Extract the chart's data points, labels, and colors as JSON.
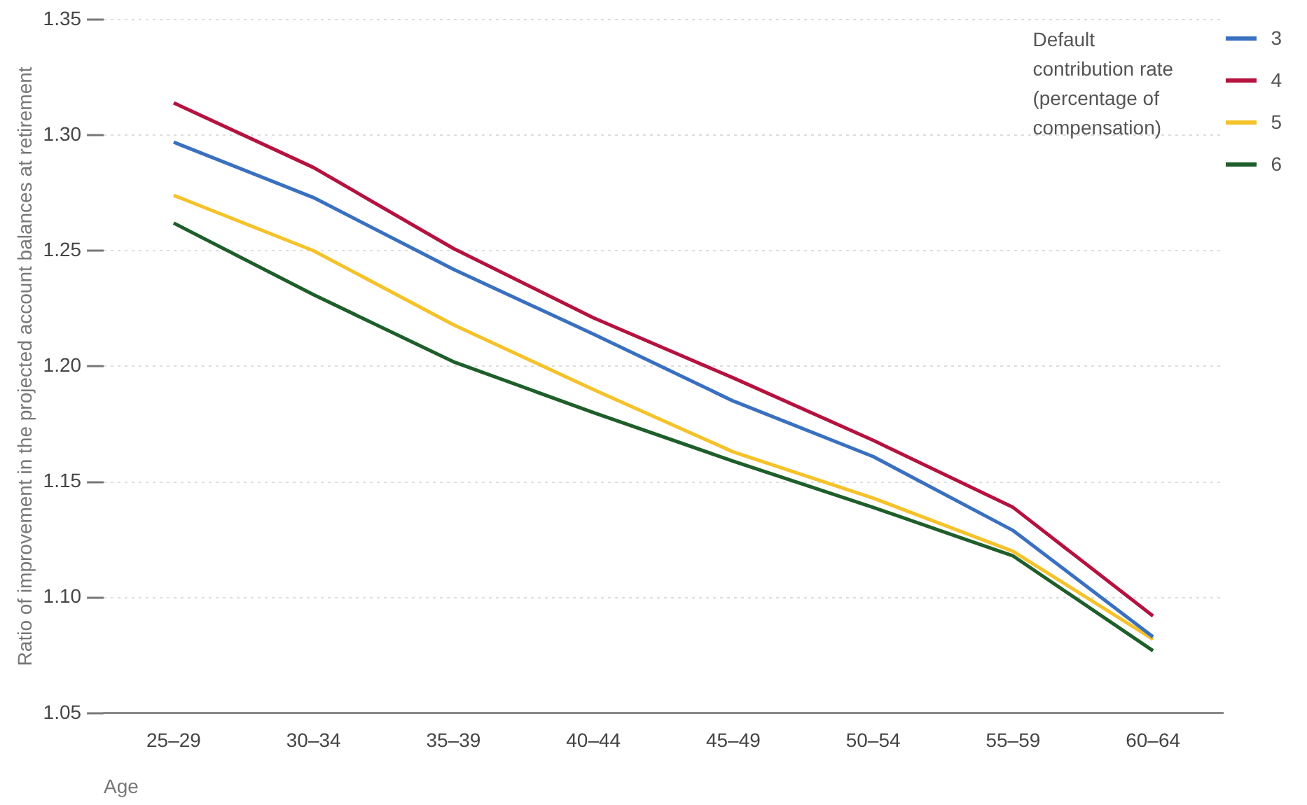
{
  "chart_data": {
    "type": "line",
    "xlabel": "Age",
    "ylabel": "Ratio of improvement in the projected account balances at retirement",
    "legend_title": "Default contribution rate (percentage of compensation)",
    "categories": [
      "25–29",
      "30–34",
      "35–39",
      "40–44",
      "45–49",
      "50–54",
      "55–59",
      "60–64"
    ],
    "series": [
      {
        "name": "3",
        "color": "#3a70c0",
        "values": [
          1.297,
          1.273,
          1.242,
          1.214,
          1.185,
          1.161,
          1.129,
          1.083
        ]
      },
      {
        "name": "4",
        "color": "#b5123f",
        "values": [
          1.314,
          1.286,
          1.251,
          1.221,
          1.195,
          1.168,
          1.139,
          1.092
        ]
      },
      {
        "name": "5",
        "color": "#f5c22a",
        "values": [
          1.274,
          1.25,
          1.218,
          1.19,
          1.163,
          1.143,
          1.12,
          1.082
        ]
      },
      {
        "name": "6",
        "color": "#1e5e2a",
        "values": [
          1.262,
          1.231,
          1.202,
          1.18,
          1.159,
          1.139,
          1.118,
          1.077
        ]
      }
    ],
    "ylim": [
      1.05,
      1.35
    ],
    "yticks": [
      1.05,
      {
        "value": 1.1,
        "label": "1.10"
      },
      1.15,
      {
        "value": 1.2,
        "label": "1.20"
      },
      1.25,
      {
        "value": 1.3,
        "label": "1.30"
      },
      1.35
    ],
    "grid": "y",
    "legend": "top right",
    "marker": "none",
    "line_style": "solid"
  }
}
